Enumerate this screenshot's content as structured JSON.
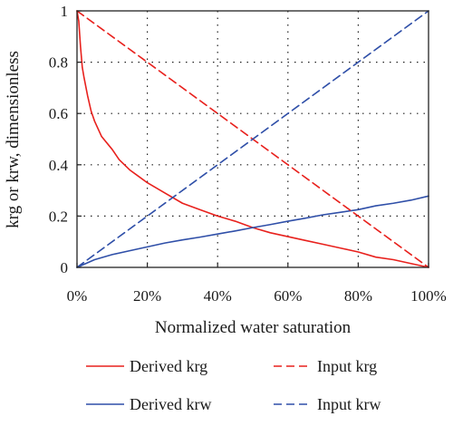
{
  "chart_data": {
    "type": "line",
    "title": "",
    "xlabel": "Normalized water saturation",
    "ylabel": "krg or krw, dimensionless",
    "xlim": [
      0,
      1
    ],
    "ylim": [
      0,
      1
    ],
    "x_tick_labels": [
      "0%",
      "20%",
      "40%",
      "60%",
      "80%",
      "100%"
    ],
    "x_tick_values": [
      0,
      0.2,
      0.4,
      0.6,
      0.8,
      1.0
    ],
    "y_tick_labels": [
      "0",
      "0.2",
      "0.4",
      "0.6",
      "0.8",
      "1"
    ],
    "y_tick_values": [
      0,
      0.2,
      0.4,
      0.6,
      0.8,
      1.0
    ],
    "grid": true,
    "legend_position": "bottom",
    "series": [
      {
        "name": "Derived krg",
        "color": "#e8211d",
        "dash": "solid",
        "x": [
          0.0,
          0.005,
          0.01,
          0.015,
          0.02,
          0.03,
          0.04,
          0.05,
          0.07,
          0.1,
          0.12,
          0.15,
          0.18,
          0.2,
          0.25,
          0.3,
          0.35,
          0.4,
          0.45,
          0.5,
          0.55,
          0.6,
          0.65,
          0.7,
          0.75,
          0.8,
          0.85,
          0.9,
          0.95,
          1.0
        ],
        "y": [
          1.0,
          0.96,
          0.86,
          0.78,
          0.74,
          0.67,
          0.61,
          0.57,
          0.51,
          0.46,
          0.42,
          0.38,
          0.35,
          0.33,
          0.29,
          0.25,
          0.225,
          0.2,
          0.18,
          0.155,
          0.135,
          0.12,
          0.105,
          0.09,
          0.075,
          0.06,
          0.04,
          0.03,
          0.015,
          0.0
        ]
      },
      {
        "name": "Derived krw",
        "color": "#2f4fa8",
        "dash": "solid",
        "x": [
          0.0,
          0.05,
          0.1,
          0.15,
          0.2,
          0.25,
          0.3,
          0.35,
          0.4,
          0.45,
          0.5,
          0.55,
          0.6,
          0.65,
          0.7,
          0.75,
          0.8,
          0.85,
          0.9,
          0.95,
          1.0
        ],
        "y": [
          0.0,
          0.03,
          0.05,
          0.065,
          0.08,
          0.095,
          0.107,
          0.118,
          0.13,
          0.142,
          0.155,
          0.167,
          0.18,
          0.192,
          0.205,
          0.215,
          0.225,
          0.24,
          0.25,
          0.262,
          0.278
        ]
      },
      {
        "name": "Input krg",
        "color": "#e8211d",
        "dash": "dashed",
        "x": [
          0.0,
          1.0
        ],
        "y": [
          1.0,
          0.0
        ]
      },
      {
        "name": "Input krw",
        "color": "#2f4fa8",
        "dash": "dashed",
        "x": [
          0.0,
          1.0
        ],
        "y": [
          0.0,
          1.0
        ]
      }
    ]
  }
}
